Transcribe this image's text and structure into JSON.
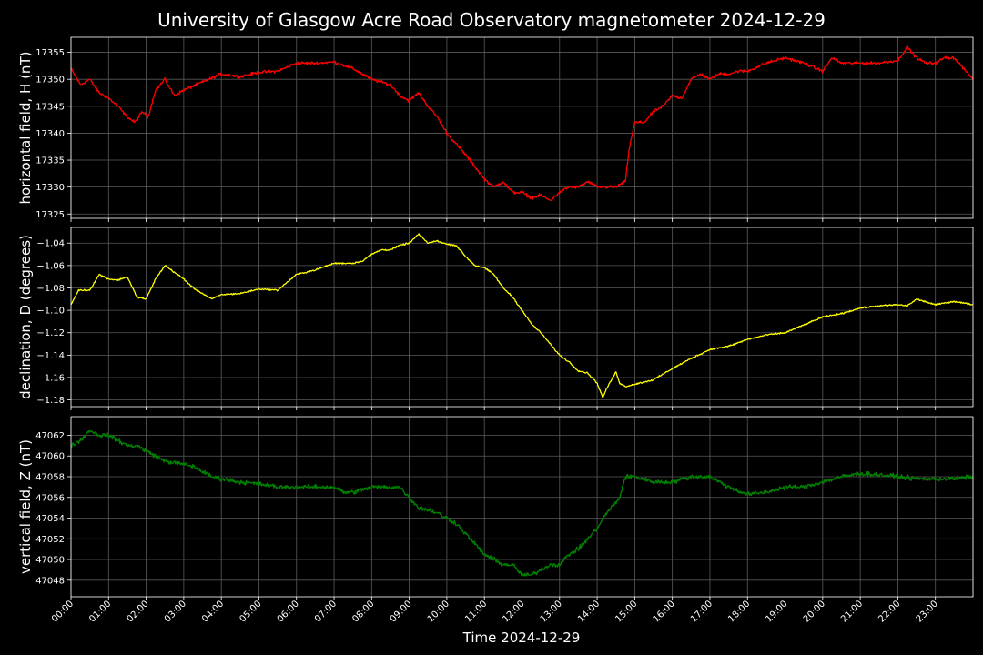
{
  "title": "University of Glasgow Acre Road Observatory magnetometer 2024-12-29",
  "background": "#000000",
  "grid_color": "#5a5a5a",
  "xlabel": "Time 2024-12-29",
  "x_tick_labels": [
    "00:00",
    "01:00",
    "02:00",
    "03:00",
    "04:00",
    "05:00",
    "06:00",
    "07:00",
    "08:00",
    "09:00",
    "10:00",
    "11:00",
    "12:00",
    "13:00",
    "14:00",
    "15:00",
    "16:00",
    "17:00",
    "18:00",
    "19:00",
    "20:00",
    "21:00",
    "22:00",
    "23:00"
  ],
  "chart_data": [
    {
      "type": "line",
      "ylabel": "horizontal field, H (nT)",
      "color": "#ff0000",
      "grid": true,
      "xlim_hours": [
        0,
        24
      ],
      "ylim": [
        17324.2,
        17357.8
      ],
      "yticks": [
        17325,
        17330,
        17335,
        17340,
        17345,
        17350,
        17355
      ],
      "ytick_labels": [
        "17325",
        "17330",
        "17335",
        "17340",
        "17345",
        "17350",
        "17355"
      ],
      "series": [
        {
          "x_hours": [
            0,
            0.25,
            0.5,
            0.75,
            1,
            1.25,
            1.5,
            1.7,
            1.9,
            2.05,
            2.25,
            2.5,
            2.75,
            3,
            3.5,
            4,
            4.5,
            5,
            5.5,
            6,
            6.5,
            7,
            7.5,
            8,
            8.5,
            8.75,
            9,
            9.25,
            9.5,
            9.75,
            10,
            10.5,
            11,
            11.25,
            11.5,
            11.75,
            12,
            12.25,
            12.5,
            12.75,
            13,
            13.25,
            13.5,
            13.75,
            14,
            14.25,
            14.5,
            14.75,
            14.85,
            15,
            15.25,
            15.5,
            15.75,
            16,
            16.25,
            16.5,
            16.75,
            17,
            17.25,
            17.5,
            17.75,
            18,
            18.5,
            19,
            19.5,
            20,
            20.25,
            20.5,
            21,
            21.5,
            22,
            22.25,
            22.5,
            22.75,
            23,
            23.25,
            23.5,
            23.75,
            24
          ],
          "values": [
            17352,
            17349,
            17350,
            17347.5,
            17346.5,
            17345,
            17343,
            17342,
            17344,
            17343,
            17348,
            17350,
            17347,
            17348,
            17349.5,
            17351,
            17350.5,
            17351.3,
            17351.5,
            17353,
            17353,
            17353.2,
            17352,
            17350,
            17349,
            17347,
            17346,
            17347.5,
            17345,
            17343,
            17340,
            17336,
            17331.5,
            17330,
            17331,
            17329,
            17329,
            17328,
            17328.5,
            17327.5,
            17329,
            17330,
            17330,
            17331,
            17330,
            17330,
            17330,
            17331,
            17337,
            17342,
            17342,
            17344,
            17345,
            17347,
            17346.5,
            17350,
            17351,
            17350,
            17351,
            17351,
            17351.5,
            17351.5,
            17353,
            17354,
            17353,
            17351.5,
            17354,
            17353,
            17353,
            17353,
            17353.5,
            17356,
            17354,
            17353,
            17353,
            17354,
            17354,
            17352,
            17350
          ]
        }
      ]
    },
    {
      "type": "line",
      "ylabel": "declination, D (degrees)",
      "color": "#ffff00",
      "grid": true,
      "xlim_hours": [
        0,
        24
      ],
      "ylim": [
        -1.186,
        -1.026
      ],
      "yticks": [
        -1.18,
        -1.16,
        -1.14,
        -1.12,
        -1.1,
        -1.08,
        -1.06,
        -1.04
      ],
      "ytick_labels": [
        "−1.18",
        "−1.16",
        "−1.14",
        "−1.12",
        "−1.10",
        "−1.08",
        "−1.06",
        "−1.04"
      ],
      "series": [
        {
          "x_hours": [
            0,
            0.2,
            0.5,
            0.75,
            1,
            1.25,
            1.5,
            1.75,
            2,
            2.25,
            2.5,
            3,
            3.25,
            3.5,
            3.75,
            4,
            4.5,
            5,
            5.5,
            6,
            6.5,
            7,
            7.5,
            7.75,
            8,
            8.25,
            8.5,
            8.75,
            9,
            9.25,
            9.5,
            9.75,
            10,
            10.25,
            10.5,
            10.75,
            11,
            11.25,
            11.5,
            11.75,
            12,
            12.25,
            12.5,
            12.75,
            13,
            13.25,
            13.5,
            13.75,
            14,
            14.15,
            14.25,
            14.5,
            14.6,
            14.75,
            15,
            15.5,
            16,
            16.5,
            17,
            17.5,
            18,
            18.5,
            19,
            19.5,
            20,
            20.5,
            21,
            21.5,
            22,
            22.25,
            22.5,
            23,
            23.5,
            24
          ],
          "values": [
            -1.095,
            -1.082,
            -1.082,
            -1.068,
            -1.072,
            -1.073,
            -1.07,
            -1.088,
            -1.09,
            -1.072,
            -1.06,
            -1.072,
            -1.08,
            -1.085,
            -1.09,
            -1.086,
            -1.085,
            -1.081,
            -1.082,
            -1.068,
            -1.064,
            -1.058,
            -1.058,
            -1.056,
            -1.05,
            -1.046,
            -1.046,
            -1.042,
            -1.04,
            -1.032,
            -1.04,
            -1.038,
            -1.041,
            -1.042,
            -1.052,
            -1.06,
            -1.062,
            -1.068,
            -1.08,
            -1.088,
            -1.1,
            -1.112,
            -1.12,
            -1.13,
            -1.14,
            -1.146,
            -1.154,
            -1.156,
            -1.165,
            -1.178,
            -1.17,
            -1.155,
            -1.165,
            -1.168,
            -1.166,
            -1.162,
            -1.152,
            -1.143,
            -1.135,
            -1.132,
            -1.126,
            -1.122,
            -1.12,
            -1.113,
            -1.106,
            -1.103,
            -1.098,
            -1.096,
            -1.095,
            -1.096,
            -1.09,
            -1.095,
            -1.092,
            -1.095
          ]
        }
      ]
    },
    {
      "type": "line",
      "ylabel": "vertical field, Z (nT)",
      "color": "#008000",
      "grid": true,
      "xlim_hours": [
        0,
        24
      ],
      "ylim": [
        47046.4,
        47063.8
      ],
      "yticks": [
        47048,
        47050,
        47052,
        47054,
        47056,
        47058,
        47060,
        47062
      ],
      "ytick_labels": [
        "47048",
        "47050",
        "47052",
        "47054",
        "47056",
        "47058",
        "47060",
        "47062"
      ],
      "series": [
        {
          "x_hours": [
            0,
            0.25,
            0.5,
            0.75,
            1,
            1.25,
            1.5,
            1.75,
            2,
            2.25,
            2.5,
            3,
            3.25,
            3.5,
            3.75,
            4,
            4.5,
            5,
            5.5,
            6,
            6.5,
            7,
            7.25,
            7.5,
            8,
            8.5,
            8.75,
            9,
            9.25,
            9.5,
            9.75,
            10,
            10.25,
            10.5,
            10.75,
            11,
            11.25,
            11.5,
            11.75,
            12,
            12.25,
            12.5,
            12.75,
            13,
            13.25,
            13.5,
            13.75,
            14,
            14.25,
            14.5,
            14.6,
            14.75,
            15,
            15.5,
            16,
            16.5,
            17,
            17.5,
            18,
            18.5,
            19,
            19.5,
            20,
            20.5,
            21,
            21.5,
            22,
            22.5,
            23,
            23.5,
            24
          ],
          "values": [
            47061,
            47061.5,
            47062.5,
            47062,
            47062,
            47061.5,
            47061,
            47061,
            47060.5,
            47060,
            47059.5,
            47059.2,
            47059,
            47058.5,
            47058,
            47057.8,
            47057.5,
            47057.3,
            47057,
            47057,
            47057,
            47057,
            47056.5,
            47056.5,
            47057,
            47057,
            47057,
            47056,
            47055,
            47054.8,
            47054.5,
            47054,
            47053.5,
            47052.5,
            47051.5,
            47050.5,
            47050,
            47049.5,
            47049.5,
            47048.5,
            47048.5,
            47049,
            47049.5,
            47049.5,
            47050.5,
            47051,
            47052,
            47053,
            47054.5,
            47055.5,
            47056,
            47058,
            47058,
            47057.5,
            47057.5,
            47058,
            47058,
            47057,
            47056.3,
            47056.5,
            47057,
            47057,
            47057.5,
            47058,
            47058.3,
            47058.2,
            47058,
            47057.8,
            47057.8,
            47057.8,
            47058
          ]
        }
      ]
    }
  ]
}
